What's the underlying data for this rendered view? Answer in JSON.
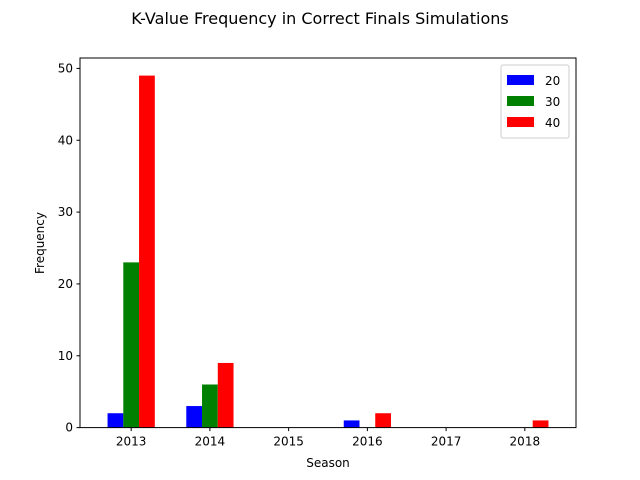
{
  "chart_data": {
    "type": "bar",
    "title": "K-Value Frequency in Correct Finals Simulations",
    "xlabel": "Season",
    "ylabel": "Frequency",
    "categories": [
      "2013",
      "2014",
      "2015",
      "2016",
      "2017",
      "2018"
    ],
    "series": [
      {
        "name": "20",
        "color": "#0000ff",
        "values": [
          2,
          3,
          0,
          1,
          0,
          0
        ]
      },
      {
        "name": "30",
        "color": "#008000",
        "values": [
          23,
          6,
          0,
          0,
          0,
          0
        ]
      },
      {
        "name": "40",
        "color": "#ff0000",
        "values": [
          49,
          9,
          0,
          2,
          0,
          1
        ]
      }
    ],
    "ylim": [
      0,
      51.45
    ],
    "yticks": [
      0,
      10,
      20,
      30,
      40,
      50
    ],
    "grid": false,
    "legend_position": "top-right"
  }
}
